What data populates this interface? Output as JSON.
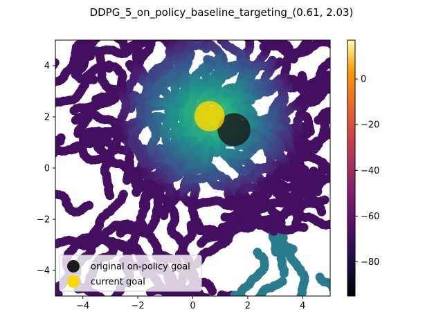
{
  "chart_data": {
    "type": "scatter",
    "title": "DDPG_5_on_policy_baseline_targeting_(0.61, 2.03)",
    "xlabel": "",
    "ylabel": "",
    "xlim": [
      -5,
      5
    ],
    "ylim": [
      -5,
      5
    ],
    "xticks": [
      -4,
      -2,
      0,
      2,
      4
    ],
    "yticks": [
      -4,
      -2,
      0,
      2,
      4
    ],
    "grid": false,
    "colorbar": {
      "colormap": "inferno",
      "range": [
        -95,
        17
      ],
      "ticks": [
        0,
        -20,
        -40,
        -60,
        -80
      ]
    },
    "trajectory_colormap": "viridis",
    "trajectory_value_range": [
      -75,
      15
    ],
    "markers": [
      {
        "name": "original on-policy goal",
        "x": 1.5,
        "y": 1.5,
        "color": "#1a1a1a",
        "radius": 0.6
      },
      {
        "name": "current goal",
        "x": 0.61,
        "y": 2.03,
        "color": "#ffd700",
        "radius": 0.55
      }
    ],
    "legend": {
      "location": "lower-left",
      "entries": [
        {
          "label": "original on-policy goal",
          "color": "#1a1a1a"
        },
        {
          "label": "current goal",
          "color": "#ffd700"
        }
      ]
    }
  }
}
